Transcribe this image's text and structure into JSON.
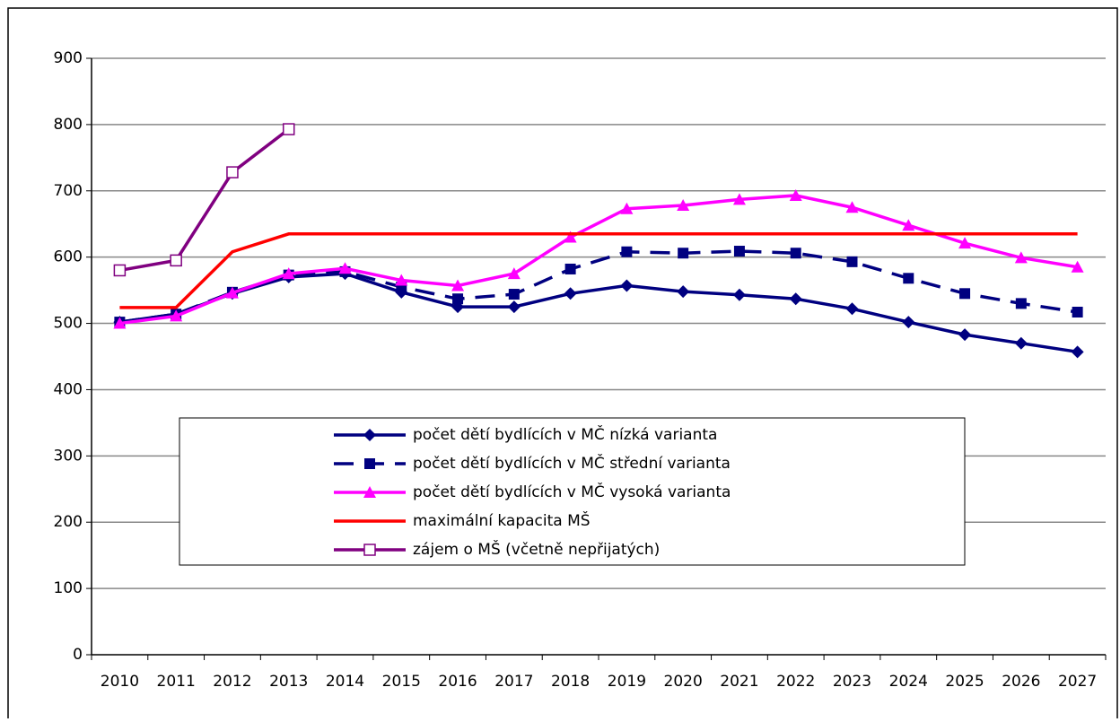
{
  "chart_data": {
    "type": "line",
    "categories": [
      "2010",
      "2011",
      "2012",
      "2013",
      "2014",
      "2015",
      "2016",
      "2017",
      "2018",
      "2019",
      "2020",
      "2021",
      "2022",
      "2023",
      "2024",
      "2025",
      "2026",
      "2027"
    ],
    "series": [
      {
        "name": "počet dětí bydlících v MČ nízká varianta",
        "color": "#000080",
        "marker": "diamond",
        "dashed": false,
        "values": [
          502,
          514,
          545,
          570,
          575,
          547,
          525,
          525,
          545,
          557,
          548,
          543,
          537,
          522,
          502,
          483,
          470,
          457
        ]
      },
      {
        "name": "počet dětí bydlících v MČ střední varianta",
        "color": "#000080",
        "marker": "square",
        "dashed": true,
        "values": [
          502,
          514,
          547,
          573,
          578,
          555,
          537,
          544,
          582,
          608,
          606,
          609,
          606,
          593,
          568,
          545,
          530,
          517
        ]
      },
      {
        "name": "počet dětí bydlících v MČ vysoká varianta",
        "color": "#ff00ff",
        "marker": "triangle",
        "dashed": false,
        "values": [
          500,
          511,
          546,
          575,
          583,
          565,
          557,
          575,
          630,
          673,
          678,
          687,
          693,
          675,
          648,
          621,
          599,
          585
        ]
      },
      {
        "name": "maximální kapacita MŠ",
        "color": "#ff0000",
        "marker": "none",
        "dashed": false,
        "values": [
          524,
          524,
          608,
          635,
          635,
          635,
          635,
          635,
          635,
          635,
          635,
          635,
          635,
          635,
          635,
          635,
          635,
          635
        ]
      },
      {
        "name": "zájem o MŠ (včetně nepřijatých)",
        "color": "#800080",
        "marker": "open-square",
        "dashed": false,
        "values": [
          580,
          595,
          728,
          793,
          null,
          null,
          null,
          null,
          null,
          null,
          null,
          null,
          null,
          null,
          null,
          null,
          null,
          null
        ]
      }
    ],
    "ylim": [
      0,
      900
    ],
    "yticks": [
      0,
      100,
      200,
      300,
      400,
      500,
      600,
      700,
      800,
      900
    ],
    "grid": true
  }
}
